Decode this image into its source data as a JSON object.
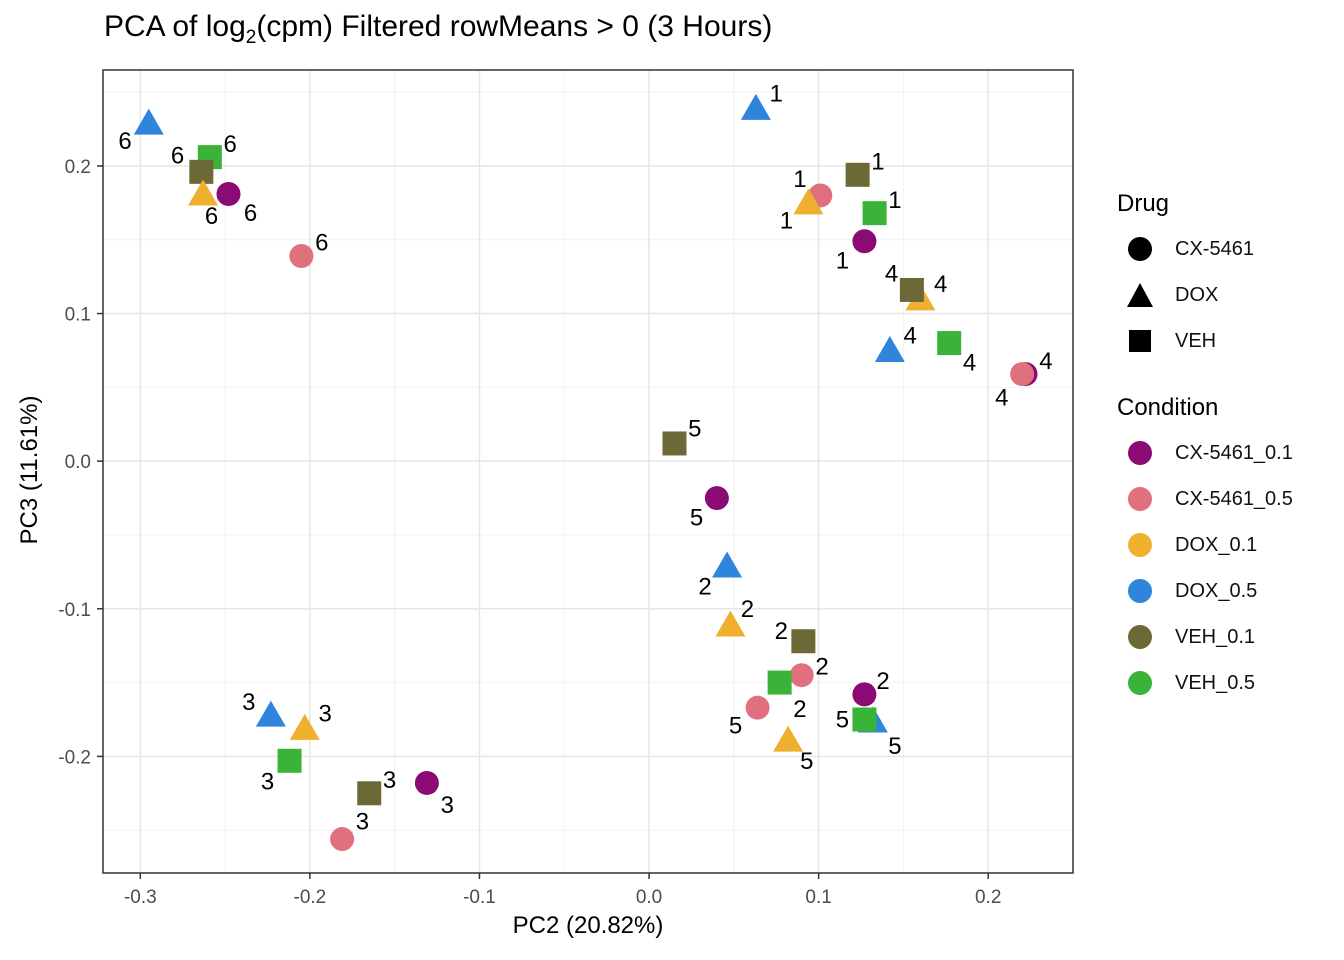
{
  "title": {
    "prefix": "PCA of log",
    "sub": "2",
    "suffix": "(cpm) Filtered rowMeans > 0 (3 Hours)"
  },
  "chart_data": {
    "type": "scatter",
    "xlabel": "PC2 (20.82%)",
    "ylabel": "PC3 (11.61%)",
    "xlim": [
      -0.322,
      0.25
    ],
    "ylim": [
      -0.279,
      0.265
    ],
    "xticks": [
      -0.3,
      -0.2,
      -0.1,
      0.0,
      0.1,
      0.2
    ],
    "xtick_labels": [
      "-0.3",
      "-0.2",
      "-0.1",
      "0.0",
      "0.1",
      "0.2"
    ],
    "yticks": [
      -0.2,
      -0.1,
      0.0,
      0.1,
      0.2
    ],
    "ytick_labels": [
      "-0.2",
      "-0.1",
      "0.0",
      "0.1",
      "0.2"
    ],
    "grid": true,
    "points": [
      {
        "condition": "DOX_0.5",
        "drug": "DOX",
        "label": "1",
        "x": 0.063,
        "y": 0.24,
        "lx": 0.075,
        "ly": 0.249
      },
      {
        "condition": "VEH_0.1",
        "drug": "VEH",
        "label": "1",
        "x": 0.123,
        "y": 0.194,
        "lx": 0.135,
        "ly": 0.203
      },
      {
        "condition": "CX-5461_0.5",
        "drug": "CX-5461",
        "label": "1",
        "x": 0.101,
        "y": 0.18,
        "lx": 0.089,
        "ly": 0.191
      },
      {
        "condition": "DOX_0.1",
        "drug": "DOX",
        "label": "1",
        "x": 0.094,
        "y": 0.176,
        "lx": 0.081,
        "ly": 0.163
      },
      {
        "condition": "VEH_0.5",
        "drug": "VEH",
        "label": "1",
        "x": 0.133,
        "y": 0.168,
        "lx": 0.145,
        "ly": 0.177
      },
      {
        "condition": "CX-5461_0.1",
        "drug": "CX-5461",
        "label": "1",
        "x": 0.127,
        "y": 0.149,
        "lx": 0.114,
        "ly": 0.136
      },
      {
        "condition": "DOX_0.1",
        "drug": "DOX",
        "label": "4",
        "x": 0.16,
        "y": 0.111,
        "lx": 0.172,
        "ly": 0.12
      },
      {
        "condition": "VEH_0.1",
        "drug": "VEH",
        "label": "4",
        "x": 0.155,
        "y": 0.116,
        "lx": 0.143,
        "ly": 0.127
      },
      {
        "condition": "DOX_0.5",
        "drug": "DOX",
        "label": "4",
        "x": 0.142,
        "y": 0.076,
        "lx": 0.154,
        "ly": 0.085
      },
      {
        "condition": "VEH_0.5",
        "drug": "VEH",
        "label": "4",
        "x": 0.177,
        "y": 0.08,
        "lx": 0.189,
        "ly": 0.067
      },
      {
        "condition": "CX-5461_0.1",
        "drug": "CX-5461",
        "label": "4",
        "x": 0.222,
        "y": 0.059,
        "lx": 0.234,
        "ly": 0.068
      },
      {
        "condition": "CX-5461_0.5",
        "drug": "CX-5461",
        "label": "4",
        "x": 0.22,
        "y": 0.059,
        "lx": 0.208,
        "ly": 0.043
      },
      {
        "condition": "DOX_0.5",
        "drug": "DOX",
        "label": "6",
        "x": -0.295,
        "y": 0.23,
        "lx": -0.309,
        "ly": 0.217
      },
      {
        "condition": "VEH_0.5",
        "drug": "VEH",
        "label": "6",
        "x": -0.259,
        "y": 0.206,
        "lx": -0.247,
        "ly": 0.215
      },
      {
        "condition": "VEH_0.1",
        "drug": "VEH",
        "label": "6",
        "x": -0.264,
        "y": 0.196,
        "lx": -0.278,
        "ly": 0.207
      },
      {
        "condition": "DOX_0.1",
        "drug": "DOX",
        "label": "6",
        "x": -0.263,
        "y": 0.182,
        "lx": -0.258,
        "ly": 0.166
      },
      {
        "condition": "CX-5461_0.1",
        "drug": "CX-5461",
        "label": "6",
        "x": -0.248,
        "y": 0.181,
        "lx": -0.235,
        "ly": 0.168
      },
      {
        "condition": "CX-5461_0.5",
        "drug": "CX-5461",
        "label": "6",
        "x": -0.205,
        "y": 0.139,
        "lx": -0.193,
        "ly": 0.148
      },
      {
        "condition": "VEH_0.1",
        "drug": "VEH",
        "label": "5",
        "x": 0.015,
        "y": 0.012,
        "lx": 0.027,
        "ly": 0.022
      },
      {
        "condition": "CX-5461_0.1",
        "drug": "CX-5461",
        "label": "5",
        "x": 0.04,
        "y": -0.025,
        "lx": 0.028,
        "ly": -0.038
      },
      {
        "condition": "DOX_0.5",
        "drug": "DOX",
        "label": "2",
        "x": 0.046,
        "y": -0.07,
        "lx": 0.033,
        "ly": -0.085
      },
      {
        "condition": "DOX_0.1",
        "drug": "DOX",
        "label": "2",
        "x": 0.048,
        "y": -0.11,
        "lx": 0.058,
        "ly": -0.1
      },
      {
        "condition": "VEH_0.1",
        "drug": "VEH",
        "label": "2",
        "x": 0.091,
        "y": -0.122,
        "lx": 0.078,
        "ly": -0.115
      },
      {
        "condition": "CX-5461_0.5",
        "drug": "CX-5461",
        "label": "2",
        "x": 0.09,
        "y": -0.145,
        "lx": 0.102,
        "ly": -0.139
      },
      {
        "condition": "VEH_0.5",
        "drug": "VEH",
        "label": "2",
        "x": 0.077,
        "y": -0.15,
        "lx": 0.089,
        "ly": -0.168
      },
      {
        "condition": "CX-5461_0.1",
        "drug": "CX-5461",
        "label": "2",
        "x": 0.127,
        "y": -0.158,
        "lx": 0.138,
        "ly": -0.149
      },
      {
        "condition": "CX-5461_0.5",
        "drug": "CX-5461",
        "label": "5",
        "x": 0.064,
        "y": -0.167,
        "lx": 0.051,
        "ly": -0.179
      },
      {
        "condition": "DOX_0.5",
        "drug": "DOX",
        "label": "5",
        "x": 0.132,
        "y": -0.175,
        "lx": 0.145,
        "ly": -0.193
      },
      {
        "condition": "VEH_0.5",
        "drug": "VEH",
        "label": "5",
        "x": 0.127,
        "y": -0.175,
        "lx": 0.114,
        "ly": -0.175
      },
      {
        "condition": "DOX_0.1",
        "drug": "DOX",
        "label": "5",
        "x": 0.082,
        "y": -0.188,
        "lx": 0.093,
        "ly": -0.203
      },
      {
        "condition": "DOX_0.5",
        "drug": "DOX",
        "label": "3",
        "x": -0.223,
        "y": -0.171,
        "lx": -0.236,
        "ly": -0.163
      },
      {
        "condition": "DOX_0.1",
        "drug": "DOX",
        "label": "3",
        "x": -0.203,
        "y": -0.18,
        "lx": -0.191,
        "ly": -0.171
      },
      {
        "condition": "VEH_0.5",
        "drug": "VEH",
        "label": "3",
        "x": -0.212,
        "y": -0.203,
        "lx": -0.225,
        "ly": -0.217
      },
      {
        "condition": "VEH_0.1",
        "drug": "VEH",
        "label": "3",
        "x": -0.165,
        "y": -0.225,
        "lx": -0.153,
        "ly": -0.216
      },
      {
        "condition": "CX-5461_0.1",
        "drug": "CX-5461",
        "label": "3",
        "x": -0.131,
        "y": -0.218,
        "lx": -0.119,
        "ly": -0.233
      },
      {
        "condition": "CX-5461_0.5",
        "drug": "CX-5461",
        "label": "3",
        "x": -0.181,
        "y": -0.256,
        "lx": -0.169,
        "ly": -0.244
      }
    ],
    "legend_drug": {
      "title": "Drug",
      "items": [
        {
          "label": "CX-5461",
          "shape": "circle"
        },
        {
          "label": "DOX",
          "shape": "triangle"
        },
        {
          "label": "VEH",
          "shape": "square"
        }
      ]
    },
    "legend_condition": {
      "title": "Condition",
      "items": [
        {
          "label": "CX-5461_0.1",
          "color": "#8B0A73"
        },
        {
          "label": "CX-5461_0.5",
          "color": "#E0707D"
        },
        {
          "label": "DOX_0.1",
          "color": "#EEB02E"
        },
        {
          "label": "DOX_0.5",
          "color": "#2F84DB"
        },
        {
          "label": "VEH_0.1",
          "color": "#6B6935"
        },
        {
          "label": "VEH_0.5",
          "color": "#3AB33A"
        }
      ]
    },
    "legend_placement": "right"
  }
}
